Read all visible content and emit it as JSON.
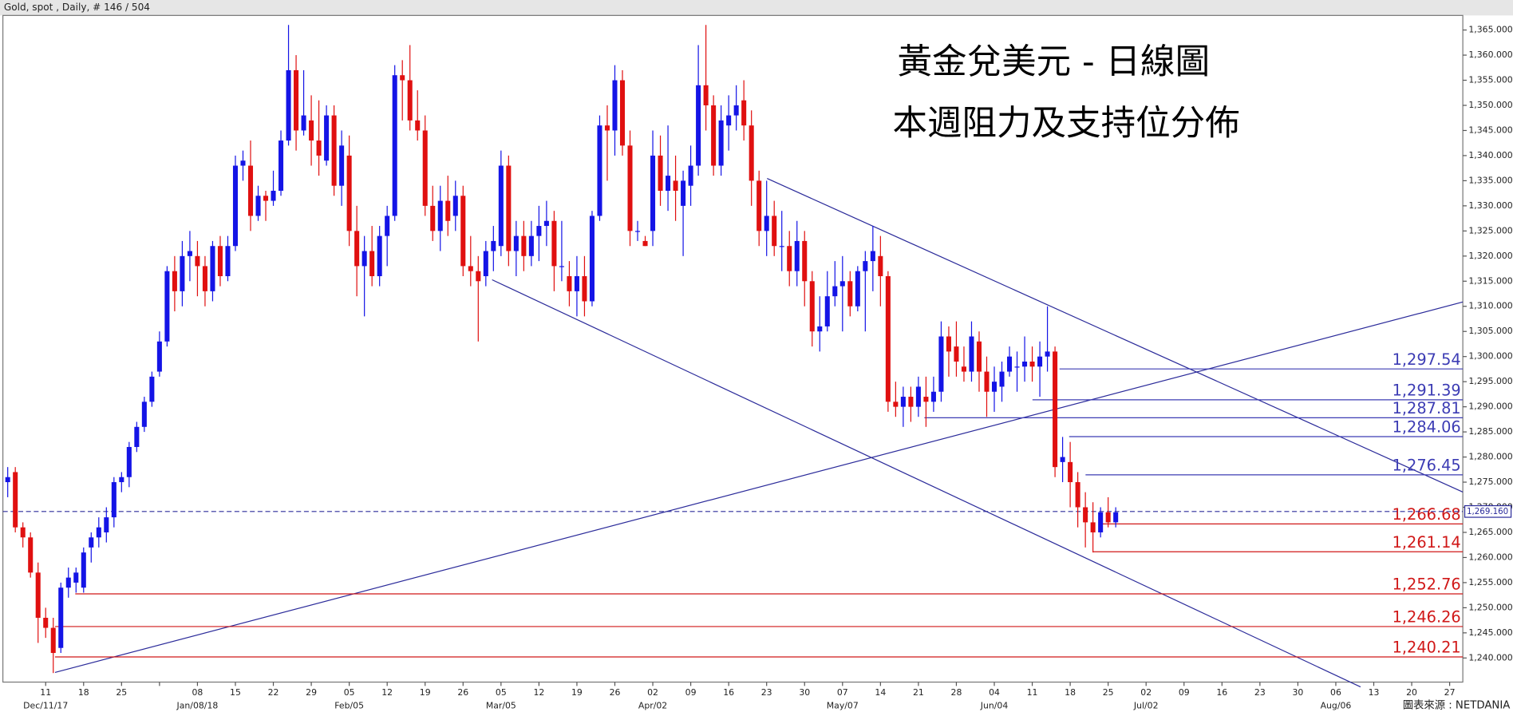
{
  "header": "Gold, spot , Daily, # 146 / 504",
  "footer": "圖表來源 : NETDANIA",
  "chart_data": {
    "type": "candlestick",
    "title": "黃金兌美元 - 日線圖",
    "subtitle": "本週阻力及支持位分佈",
    "up_color": "#1414e6",
    "down_color": "#e01010",
    "ylim": [
      1235.2,
      1367.9
    ],
    "yticks": [
      {
        "value": 1240,
        "label": "1,240.000"
      },
      {
        "value": 1245,
        "label": "1,245.000"
      },
      {
        "value": 1250,
        "label": "1,250.000"
      },
      {
        "value": 1255,
        "label": "1,255.000"
      },
      {
        "value": 1260,
        "label": "1,260.000"
      },
      {
        "value": 1265,
        "label": "1,265.000"
      },
      {
        "value": 1270,
        "label": "1,270.000"
      },
      {
        "value": 1275,
        "label": "1,275.000"
      },
      {
        "value": 1280,
        "label": "1,280.000"
      },
      {
        "value": 1285,
        "label": "1,285.000"
      },
      {
        "value": 1290,
        "label": "1,290.000"
      },
      {
        "value": 1295,
        "label": "1,295.000"
      },
      {
        "value": 1300,
        "label": "1,300.000"
      },
      {
        "value": 1305,
        "label": "1,305.000"
      },
      {
        "value": 1310,
        "label": "1,310.000"
      },
      {
        "value": 1315,
        "label": "1,315.000"
      },
      {
        "value": 1320,
        "label": "1,320.000"
      },
      {
        "value": 1325,
        "label": "1,325.000"
      },
      {
        "value": 1330,
        "label": "1,330.000"
      },
      {
        "value": 1335,
        "label": "1,335.000"
      },
      {
        "value": 1340,
        "label": "1,340.000"
      },
      {
        "value": 1345,
        "label": "1,345.000"
      },
      {
        "value": 1350,
        "label": "1,350.000"
      },
      {
        "value": 1355,
        "label": "1,355.000"
      },
      {
        "value": 1360,
        "label": "1,360.000"
      },
      {
        "value": 1365,
        "label": "1,365.000"
      }
    ],
    "xtick_labels": [
      "11",
      "18",
      "25",
      null,
      "08",
      "15",
      "22",
      "29",
      "05",
      "12",
      "19",
      "26",
      "05",
      "12",
      "19",
      "26",
      "02",
      "09",
      "16",
      "23",
      "30",
      "07",
      "14",
      "21",
      "28",
      "04",
      "11",
      "18",
      "25",
      "02",
      "09",
      "16",
      "23",
      "30",
      "06",
      "13",
      "20",
      "27"
    ],
    "xtick_sublabels": [
      "Dec/11/17",
      null,
      null,
      null,
      "Jan/08/18",
      null,
      null,
      null,
      "Feb/05",
      null,
      null,
      null,
      "Mar/05",
      null,
      null,
      null,
      "Apr/02",
      null,
      null,
      null,
      null,
      "May/07",
      null,
      null,
      null,
      "Jun/04",
      null,
      null,
      null,
      "Jul/02",
      null,
      null,
      null,
      null,
      "Aug/06",
      null,
      null,
      null
    ],
    "last_price": {
      "value": 1269.16,
      "label": "1,269.160"
    },
    "levels": [
      {
        "value": 1297.54,
        "label": "1,297.54",
        "color": "#3c3cb4"
      },
      {
        "value": 1291.39,
        "label": "1,291.39",
        "color": "#3c3cb4"
      },
      {
        "value": 1287.81,
        "label": "1,287.81",
        "color": "#3c3cb4"
      },
      {
        "value": 1284.06,
        "label": "1,284.06",
        "color": "#3c3cb4"
      },
      {
        "value": 1276.45,
        "label": "1,276.45",
        "color": "#3c3cb4"
      },
      {
        "value": 1266.68,
        "label": "1,266.68",
        "color": "#d01818"
      },
      {
        "value": 1261.14,
        "label": "1,261.14",
        "color": "#d01818"
      },
      {
        "value": 1252.76,
        "label": "1,252.76",
        "color": "#d01818"
      },
      {
        "value": 1246.26,
        "label": "1,246.26",
        "color": "#d01818"
      },
      {
        "value": 1240.21,
        "label": "1,240.21",
        "color": "#d01818"
      }
    ],
    "ohlc": [
      [
        1275,
        1278,
        1272,
        1276
      ],
      [
        1277,
        1278,
        1265,
        1266
      ],
      [
        1266,
        1267,
        1262,
        1264
      ],
      [
        1264,
        1265,
        1256,
        1257
      ],
      [
        1257,
        1259,
        1243,
        1248
      ],
      [
        1248,
        1250,
        1244,
        1246
      ],
      [
        1246,
        1248,
        1237,
        1241
      ],
      [
        1242,
        1255,
        1241,
        1254
      ],
      [
        1254,
        1258,
        1252,
        1256
      ],
      [
        1255,
        1258,
        1253,
        1257
      ],
      [
        1254,
        1262,
        1253,
        1261
      ],
      [
        1262,
        1265,
        1259,
        1264
      ],
      [
        1264,
        1268,
        1262,
        1266
      ],
      [
        1265,
        1270,
        1263,
        1268
      ],
      [
        1268,
        1276,
        1266,
        1275
      ],
      [
        1275,
        1277,
        1273,
        1276
      ],
      [
        1276,
        1283,
        1274,
        1282
      ],
      [
        1282,
        1287,
        1281,
        1286
      ],
      [
        1286,
        1292,
        1285,
        1291
      ],
      [
        1291,
        1297,
        1290,
        1296
      ],
      [
        1297,
        1305,
        1296,
        1303
      ],
      [
        1303,
        1318,
        1302,
        1317
      ],
      [
        1317,
        1320,
        1309,
        1313
      ],
      [
        1313,
        1323,
        1310,
        1320
      ],
      [
        1320,
        1325,
        1315,
        1321
      ],
      [
        1320,
        1323,
        1312,
        1318
      ],
      [
        1318,
        1320,
        1310,
        1313
      ],
      [
        1313,
        1323,
        1311,
        1322
      ],
      [
        1322,
        1324,
        1314,
        1316
      ],
      [
        1316,
        1324,
        1315,
        1322
      ],
      [
        1322,
        1340,
        1321,
        1338
      ],
      [
        1338,
        1341,
        1335,
        1339
      ],
      [
        1338,
        1343,
        1325,
        1328
      ],
      [
        1328,
        1334,
        1327,
        1332
      ],
      [
        1332,
        1333,
        1327,
        1331
      ],
      [
        1331,
        1337,
        1330,
        1333
      ],
      [
        1333,
        1345,
        1332,
        1343
      ],
      [
        1343,
        1366,
        1342,
        1357
      ],
      [
        1357,
        1360,
        1341,
        1345
      ],
      [
        1345,
        1357,
        1344,
        1348
      ],
      [
        1347,
        1352,
        1338,
        1343
      ],
      [
        1343,
        1351,
        1336,
        1340
      ],
      [
        1339,
        1350,
        1338,
        1348
      ],
      [
        1348,
        1350,
        1332,
        1334
      ],
      [
        1334,
        1345,
        1330,
        1342
      ],
      [
        1340,
        1344,
        1322,
        1325
      ],
      [
        1325,
        1330,
        1312,
        1318
      ],
      [
        1318,
        1324,
        1308,
        1321
      ],
      [
        1321,
        1326,
        1314,
        1316
      ],
      [
        1316,
        1326,
        1314,
        1324
      ],
      [
        1324,
        1330,
        1318,
        1328
      ],
      [
        1328,
        1358,
        1327,
        1356
      ],
      [
        1356,
        1359,
        1347,
        1355
      ],
      [
        1355,
        1362,
        1345,
        1347
      ],
      [
        1347,
        1353,
        1343,
        1345
      ],
      [
        1345,
        1348,
        1328,
        1330
      ],
      [
        1330,
        1334,
        1323,
        1325
      ],
      [
        1325,
        1334,
        1321,
        1331
      ],
      [
        1331,
        1336,
        1324,
        1327
      ],
      [
        1328,
        1335,
        1325,
        1332
      ],
      [
        1332,
        1334,
        1316,
        1318
      ],
      [
        1318,
        1324,
        1314,
        1317
      ],
      [
        1317,
        1320,
        1303,
        1315
      ],
      [
        1316,
        1323,
        1314,
        1321
      ],
      [
        1321,
        1326,
        1317,
        1323
      ],
      [
        1322,
        1341,
        1320,
        1338
      ],
      [
        1338,
        1340,
        1318,
        1321
      ],
      [
        1321,
        1327,
        1316,
        1324
      ],
      [
        1324,
        1327,
        1317,
        1320
      ],
      [
        1320,
        1327,
        1318,
        1324
      ],
      [
        1324,
        1330,
        1319,
        1326
      ],
      [
        1326,
        1331,
        1322,
        1327
      ],
      [
        1327,
        1329,
        1313,
        1318
      ],
      [
        1318,
        1327,
        1315,
        1318
      ],
      [
        1316,
        1319,
        1310,
        1313
      ],
      [
        1313,
        1320,
        1308,
        1316
      ],
      [
        1316,
        1320,
        1308,
        1311
      ],
      [
        1311,
        1329,
        1310,
        1328
      ],
      [
        1328,
        1348,
        1327,
        1346
      ],
      [
        1346,
        1350,
        1335,
        1345
      ],
      [
        1345,
        1358,
        1340,
        1355
      ],
      [
        1355,
        1357,
        1340,
        1342
      ],
      [
        1342,
        1345,
        1322,
        1325
      ],
      [
        1325,
        1327,
        1323,
        1325
      ],
      [
        1323,
        1324,
        1322,
        1322
      ],
      [
        1325,
        1345,
        1322,
        1340
      ],
      [
        1340,
        1344,
        1330,
        1333
      ],
      [
        1333,
        1346,
        1329,
        1336
      ],
      [
        1335,
        1340,
        1327,
        1333
      ],
      [
        1330,
        1337,
        1320,
        1335
      ],
      [
        1334,
        1342,
        1330,
        1338
      ],
      [
        1338,
        1362,
        1336,
        1354
      ],
      [
        1354,
        1366,
        1345,
        1350
      ],
      [
        1350,
        1352,
        1336,
        1338
      ],
      [
        1338,
        1350,
        1336,
        1347
      ],
      [
        1346,
        1352,
        1341,
        1348
      ],
      [
        1348,
        1354,
        1345,
        1350
      ],
      [
        1351,
        1355,
        1343,
        1346
      ],
      [
        1346,
        1349,
        1330,
        1335
      ],
      [
        1335,
        1337,
        1322,
        1325
      ],
      [
        1325,
        1335,
        1320,
        1328
      ],
      [
        1328,
        1331,
        1320,
        1322
      ],
      [
        1322,
        1329,
        1317,
        1322
      ],
      [
        1322,
        1325,
        1314,
        1317
      ],
      [
        1317,
        1327,
        1314,
        1323
      ],
      [
        1323,
        1325,
        1310,
        1315
      ],
      [
        1315,
        1317,
        1302,
        1305
      ],
      [
        1305,
        1312,
        1301,
        1306
      ],
      [
        1306,
        1317,
        1305,
        1312
      ],
      [
        1312,
        1319,
        1310,
        1314
      ],
      [
        1314,
        1320,
        1305,
        1315
      ],
      [
        1315,
        1317,
        1308,
        1310
      ],
      [
        1310,
        1318,
        1309,
        1317
      ],
      [
        1317,
        1321,
        1305,
        1319
      ],
      [
        1319,
        1326,
        1313,
        1321
      ],
      [
        1320,
        1324,
        1310,
        1316
      ],
      [
        1316,
        1317,
        1289,
        1291
      ],
      [
        1291,
        1295,
        1288,
        1290
      ],
      [
        1290,
        1294,
        1286,
        1292
      ],
      [
        1292,
        1294,
        1287,
        1290
      ],
      [
        1290,
        1296,
        1288,
        1294
      ],
      [
        1292,
        1296,
        1286,
        1291
      ],
      [
        1291,
        1296,
        1289,
        1293
      ],
      [
        1293,
        1307,
        1291,
        1304
      ],
      [
        1304,
        1306,
        1296,
        1301
      ],
      [
        1302,
        1307,
        1296,
        1299
      ],
      [
        1298,
        1302,
        1295,
        1297
      ],
      [
        1297,
        1307,
        1295,
        1304
      ],
      [
        1303,
        1305,
        1293,
        1297
      ],
      [
        1297,
        1300,
        1288,
        1293
      ],
      [
        1293,
        1298,
        1289,
        1295
      ],
      [
        1294,
        1299,
        1291,
        1297
      ],
      [
        1297,
        1302,
        1296,
        1300
      ],
      [
        1298,
        1301,
        1293,
        1298
      ],
      [
        1298,
        1304,
        1295,
        1299
      ],
      [
        1299,
        1302,
        1295,
        1298
      ],
      [
        1298,
        1303,
        1292,
        1300
      ],
      [
        1300,
        1310,
        1297,
        1301
      ],
      [
        1301,
        1302,
        1276,
        1278
      ],
      [
        1279,
        1284,
        1275,
        1280
      ],
      [
        1279,
        1283,
        1270,
        1275
      ],
      [
        1275,
        1277,
        1266,
        1270
      ],
      [
        1270,
        1273,
        1262,
        1267
      ],
      [
        1267,
        1271,
        1261,
        1265
      ],
      [
        1265,
        1270,
        1264,
        1269
      ],
      [
        1269,
        1272,
        1266,
        1267
      ],
      [
        1267,
        1270,
        1266,
        1269
      ]
    ]
  }
}
